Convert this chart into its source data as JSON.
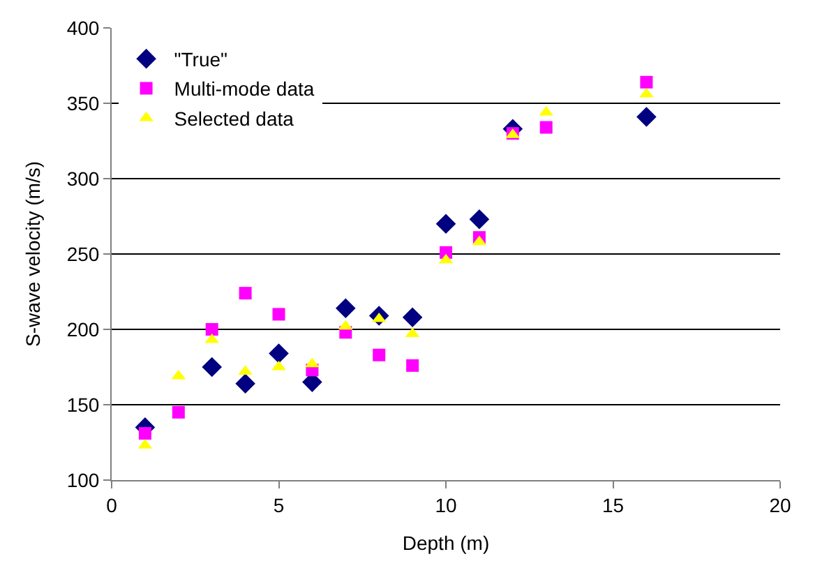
{
  "chart_data": {
    "type": "scatter",
    "xlabel": "Depth (m)",
    "ylabel": "S-wave velocity (m/s)",
    "x": [
      1,
      2,
      3,
      4,
      5,
      6,
      7,
      8,
      9,
      10,
      11,
      12,
      13,
      16
    ],
    "series": [
      {
        "name": "\"True\"",
        "color": "#000080",
        "marker": "diamond",
        "values": [
          135,
          null,
          175,
          164,
          184,
          165,
          214,
          209,
          208,
          270,
          273,
          333,
          null,
          341
        ]
      },
      {
        "name": "Multi-mode data",
        "color": "#ff00ff",
        "marker": "square",
        "values": [
          131,
          145,
          200,
          224,
          210,
          173,
          198,
          183,
          176,
          251,
          261,
          330,
          334,
          364
        ]
      },
      {
        "name": "Selected data",
        "color": "#ffff00",
        "marker": "triangle",
        "values": [
          123,
          169,
          193,
          172,
          175,
          177,
          202,
          207,
          197,
          246,
          258,
          329,
          344,
          356
        ]
      }
    ],
    "xlim": [
      0,
      20
    ],
    "xticks": [
      0,
      5,
      10,
      15,
      20
    ],
    "ylim": [
      100,
      400
    ],
    "yticks": [
      100,
      150,
      200,
      250,
      300,
      350,
      400
    ],
    "grid": "y",
    "legend": "top left"
  }
}
